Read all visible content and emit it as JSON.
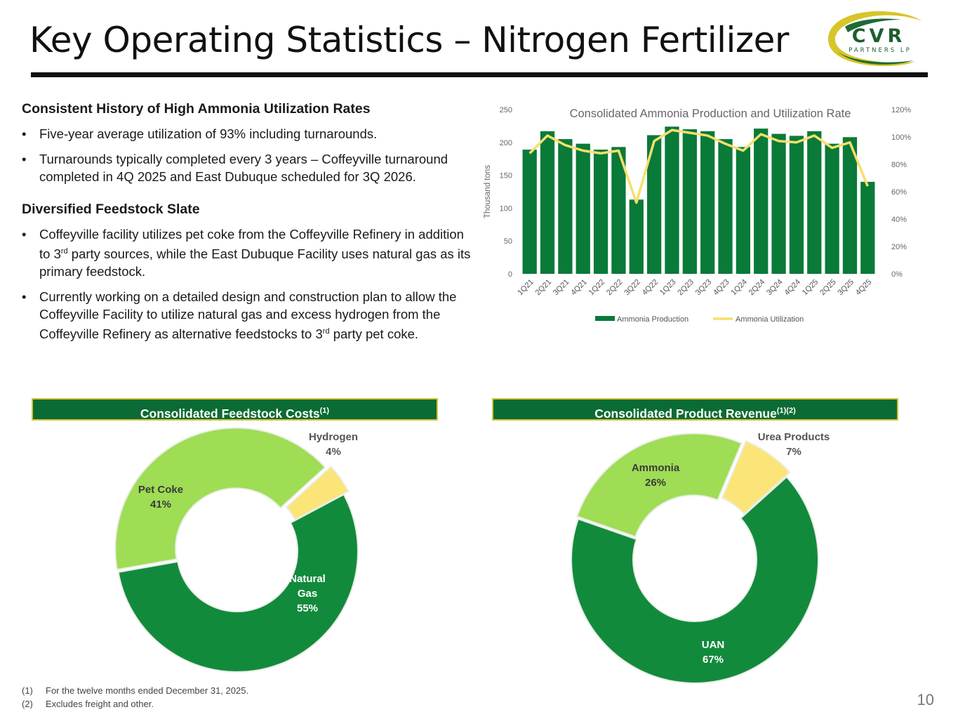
{
  "header": {
    "title": "Key Operating Statistics – Nitrogen Fertilizer",
    "logo_main": "CVR",
    "logo_sub": "PARTNERS LP"
  },
  "left": {
    "section1_title": "Consistent History of High Ammonia Utilization Rates",
    "s1_bullet1": "Five-year average utilization of 93% including turnarounds.",
    "s1_bullet2": "Turnarounds typically completed every 3 years – Coffeyville turnaround completed in 4Q 2025 and East Dubuque scheduled for 3Q 2026.",
    "section2_title": "Diversified Feedstock Slate",
    "s2_bullet1_a": "Coffeyville facility utilizes pet coke from the Coffeyville Refinery in addition to 3",
    "s2_bullet1_sup": "rd",
    "s2_bullet1_b": " party sources, while the East Dubuque Facility uses natural gas as its primary feedstock.",
    "s2_bullet2_a": "Currently working on a detailed design and construction plan to allow the Coffeyville Facility to utilize natural gas and excess hydrogen from the Coffeyville Refinery as alternative feedstocks to 3",
    "s2_bullet2_sup": "rd",
    "s2_bullet2_b": " party pet coke.",
    "bullet_char": "•"
  },
  "banners": {
    "feedstock": "Consolidated Feedstock Costs",
    "feedstock_sup": "(1)",
    "revenue": "Consolidated Product Revenue",
    "revenue_sup": "(1)(2)"
  },
  "chart_data": [
    {
      "type": "bar",
      "title": "Consolidated Ammonia Production and Utilization Rate",
      "categories": [
        "1Q21",
        "2Q21",
        "3Q21",
        "4Q21",
        "1Q22",
        "2Q22",
        "3Q22",
        "4Q22",
        "1Q23",
        "2Q23",
        "3Q23",
        "4Q23",
        "1Q24",
        "2Q24",
        "3Q24",
        "4Q24",
        "1Q25",
        "2Q25",
        "3Q25",
        "4Q25"
      ],
      "series": [
        {
          "name": "Ammonia Production",
          "axis": "left",
          "kind": "bar",
          "values": [
            189,
            217,
            205,
            198,
            189,
            193,
            113,
            211,
            224,
            220,
            217,
            205,
            193,
            221,
            213,
            210,
            217,
            198,
            208,
            140
          ]
        },
        {
          "name": "Ammonia Utilization",
          "axis": "right",
          "kind": "line",
          "values": [
            88,
            101,
            94,
            90,
            88,
            90,
            52,
            97,
            105,
            103,
            101,
            95,
            90,
            102,
            97,
            96,
            101,
            92,
            96,
            64
          ]
        }
      ],
      "ylabel": "Thousand tons",
      "ylim": [
        0,
        250
      ],
      "yticks": [
        "0",
        "50",
        "100",
        "150",
        "200",
        "250"
      ],
      "y2lim": [
        0,
        120
      ],
      "y2ticks": [
        "0%",
        "20%",
        "40%",
        "60%",
        "80%",
        "100%",
        "120%"
      ],
      "legend": "bottom",
      "colors": {
        "bar": "#0a7a38",
        "line": "#f7df6b"
      }
    },
    {
      "type": "pie",
      "title": "Consolidated Feedstock Costs",
      "slices": [
        {
          "name": "Natural Gas",
          "label_lines": [
            "Natural",
            "Gas"
          ],
          "value": 55,
          "pct": "55%",
          "color": "#128a3c"
        },
        {
          "name": "Pet Coke",
          "label_lines": [
            "Pet Coke"
          ],
          "value": 41,
          "pct": "41%",
          "color": "#9fdd55"
        },
        {
          "name": "Hydrogen",
          "label_lines": [
            "Hydrogen"
          ],
          "value": 4,
          "pct": "4%",
          "color": "#fbe579"
        }
      ]
    },
    {
      "type": "pie",
      "title": "Consolidated Product Revenue",
      "slices": [
        {
          "name": "UAN",
          "label_lines": [
            "UAN"
          ],
          "value": 67,
          "pct": "67%",
          "color": "#128a3c"
        },
        {
          "name": "Ammonia",
          "label_lines": [
            "Ammonia"
          ],
          "value": 26,
          "pct": "26%",
          "color": "#9fdd55"
        },
        {
          "name": "Urea Products",
          "label_lines": [
            "Urea Products"
          ],
          "value": 7,
          "pct": "7%",
          "color": "#fbe579"
        }
      ]
    }
  ],
  "footnotes": [
    {
      "n": "(1)",
      "text": "For the twelve months ended December 31, 2025."
    },
    {
      "n": "(2)",
      "text": "Excludes freight and other."
    }
  ],
  "page_number": "10"
}
